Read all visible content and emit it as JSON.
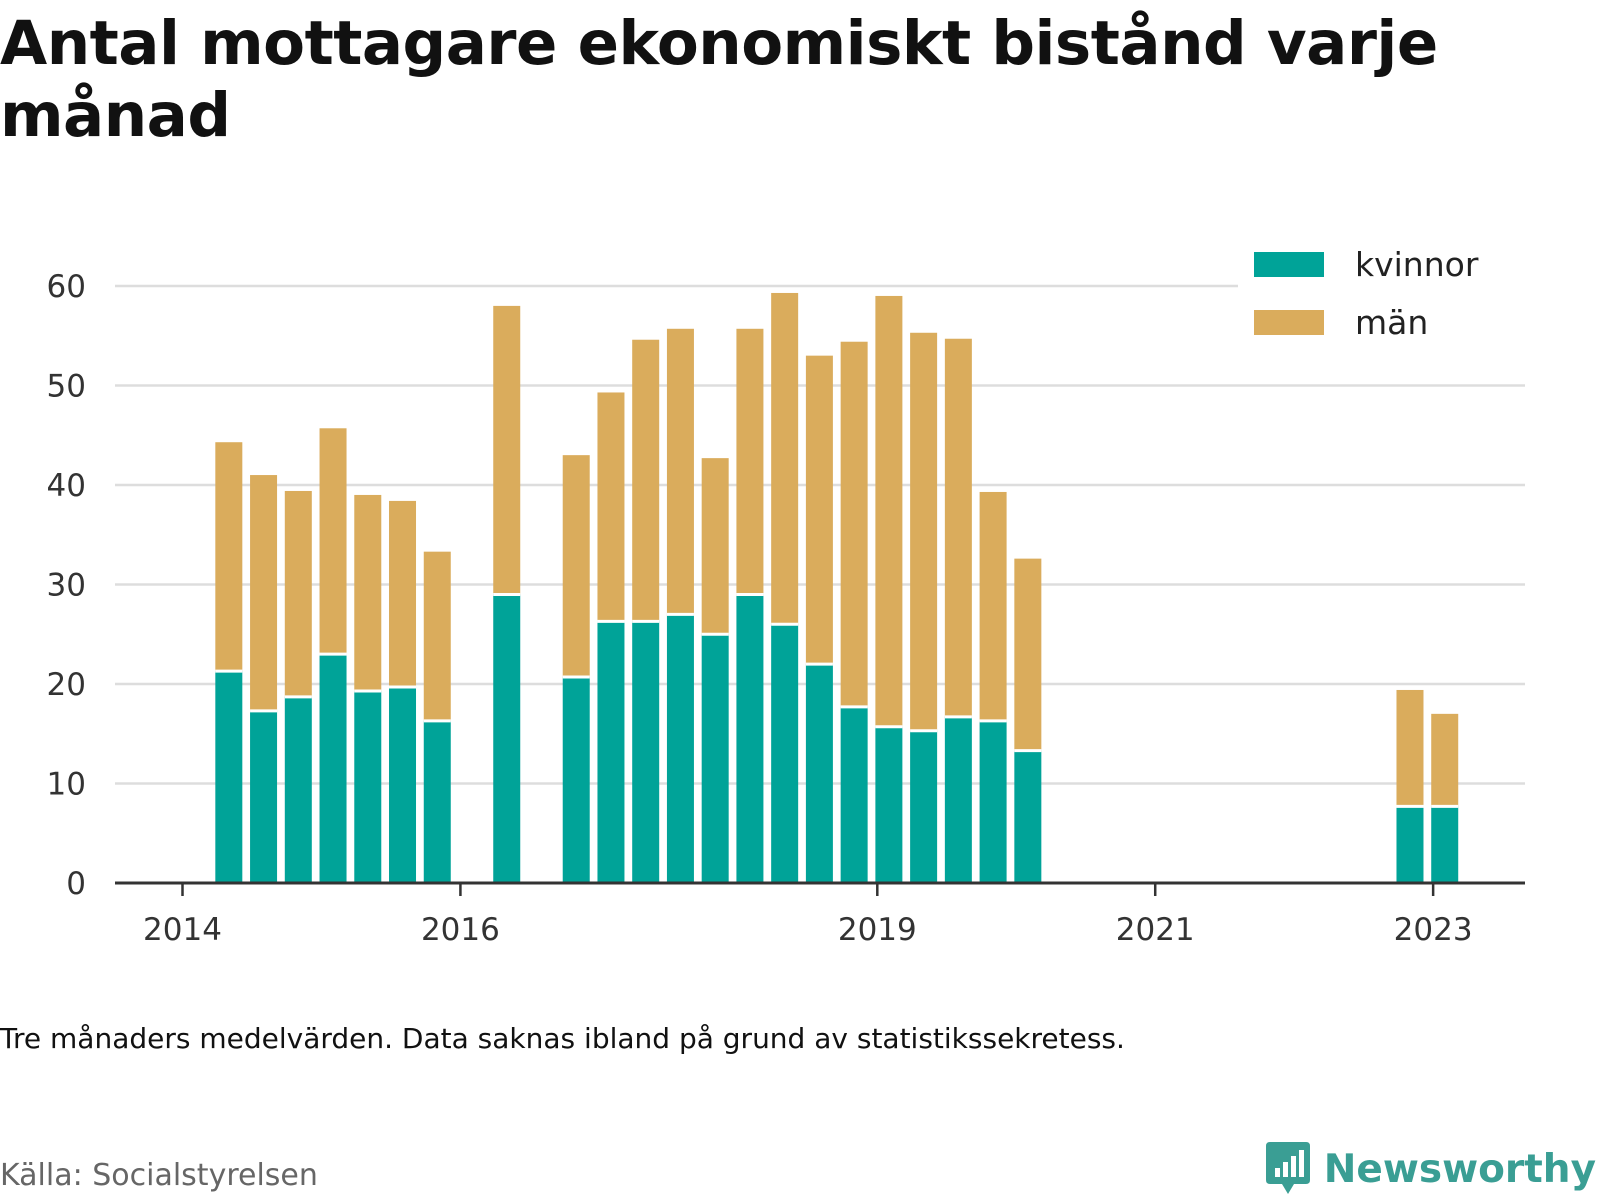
{
  "title": "Antal mottagare ekonomiskt bistånd varje månad",
  "note": "Tre månaders medelvärden. Data saknas ibland på grund av statistikssekretess.",
  "source": "Källa: Socialstyrelsen",
  "brand": "Newsworthy",
  "chart_data": {
    "type": "bar",
    "stacked": true,
    "title": "Antal mottagare ekonomiskt bistånd varje månad",
    "xlabel": "",
    "ylabel": "",
    "ylim": [
      0,
      60
    ],
    "y_ticks": [
      0,
      10,
      20,
      30,
      40,
      50,
      60
    ],
    "x_ticks": [
      "2014",
      "2016",
      "2019",
      "2021",
      "2023"
    ],
    "grid": true,
    "legend_position": "top-right",
    "colors": {
      "kvinnor": "#00a398",
      "män": "#daac5c"
    },
    "categories": [
      "2014-05",
      "2014-08",
      "2014-11",
      "2015-02",
      "2015-05",
      "2015-08",
      "2015-11",
      "2016-05",
      "2016-11",
      "2017-02",
      "2017-05",
      "2017-08",
      "2017-11",
      "2018-02",
      "2018-05",
      "2018-08",
      "2018-11",
      "2019-02",
      "2019-05",
      "2019-08",
      "2019-11",
      "2020-02",
      "2022-11",
      "2023-02"
    ],
    "series": [
      {
        "name": "kvinnor",
        "values": [
          21.3,
          17.3,
          18.7,
          23.0,
          19.3,
          19.7,
          16.3,
          29.0,
          20.7,
          26.3,
          26.3,
          27.0,
          25.0,
          29.0,
          26.0,
          22.0,
          17.7,
          15.7,
          15.3,
          16.7,
          16.3,
          13.3,
          7.7,
          7.7
        ]
      },
      {
        "name": "män",
        "values": [
          23.0,
          23.7,
          20.7,
          22.7,
          19.7,
          18.7,
          17.0,
          29.0,
          22.3,
          23.0,
          28.3,
          28.7,
          17.7,
          26.7,
          33.3,
          31.0,
          36.7,
          43.3,
          40.0,
          38.0,
          23.0,
          19.3,
          11.7,
          9.3
        ]
      }
    ]
  }
}
